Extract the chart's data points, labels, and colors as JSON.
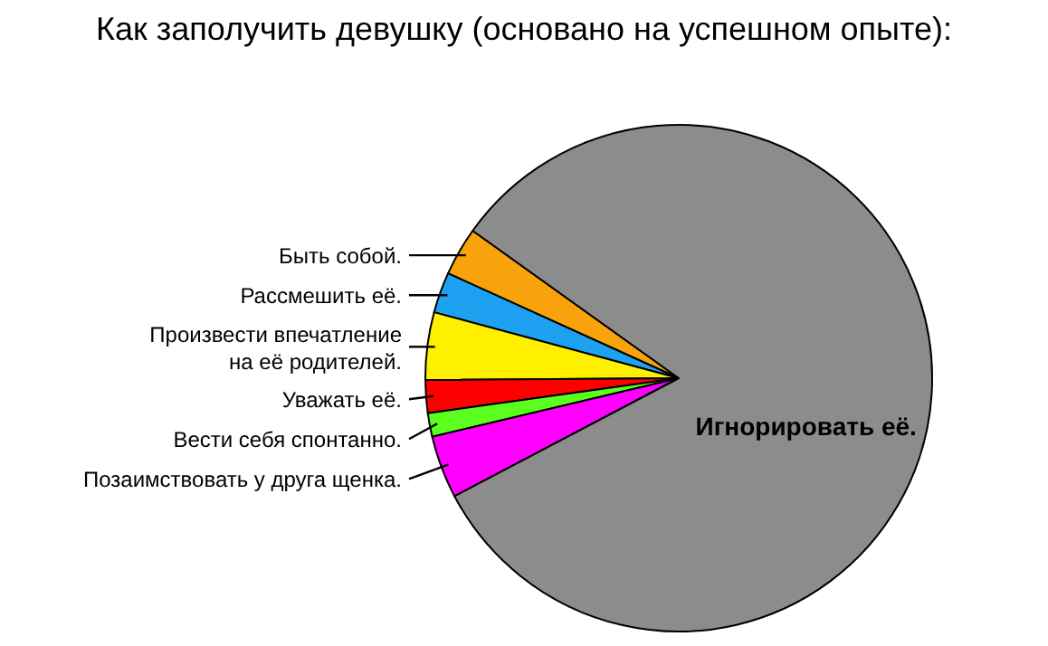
{
  "chart_data": {
    "type": "pie",
    "title": "Как заполучить девушку (основано на успешном опыте):",
    "categories": [
      "Быть собой.",
      "Рассмешить её.",
      "Произвести впечатление на её родителей.",
      "Уважать её.",
      "Вести себя спонтанно.",
      "Позаимствовать у друга щенка.",
      "Игнорировать её."
    ],
    "values": [
      3.1,
      2.6,
      4.3,
      2.1,
      1.5,
      4.0,
      82.4
    ],
    "colors": [
      "#f9a30c",
      "#1ea1f0",
      "#fff000",
      "#ff0000",
      "#5aff1e",
      "#ff00ff",
      "#8c8c8c"
    ]
  }
}
